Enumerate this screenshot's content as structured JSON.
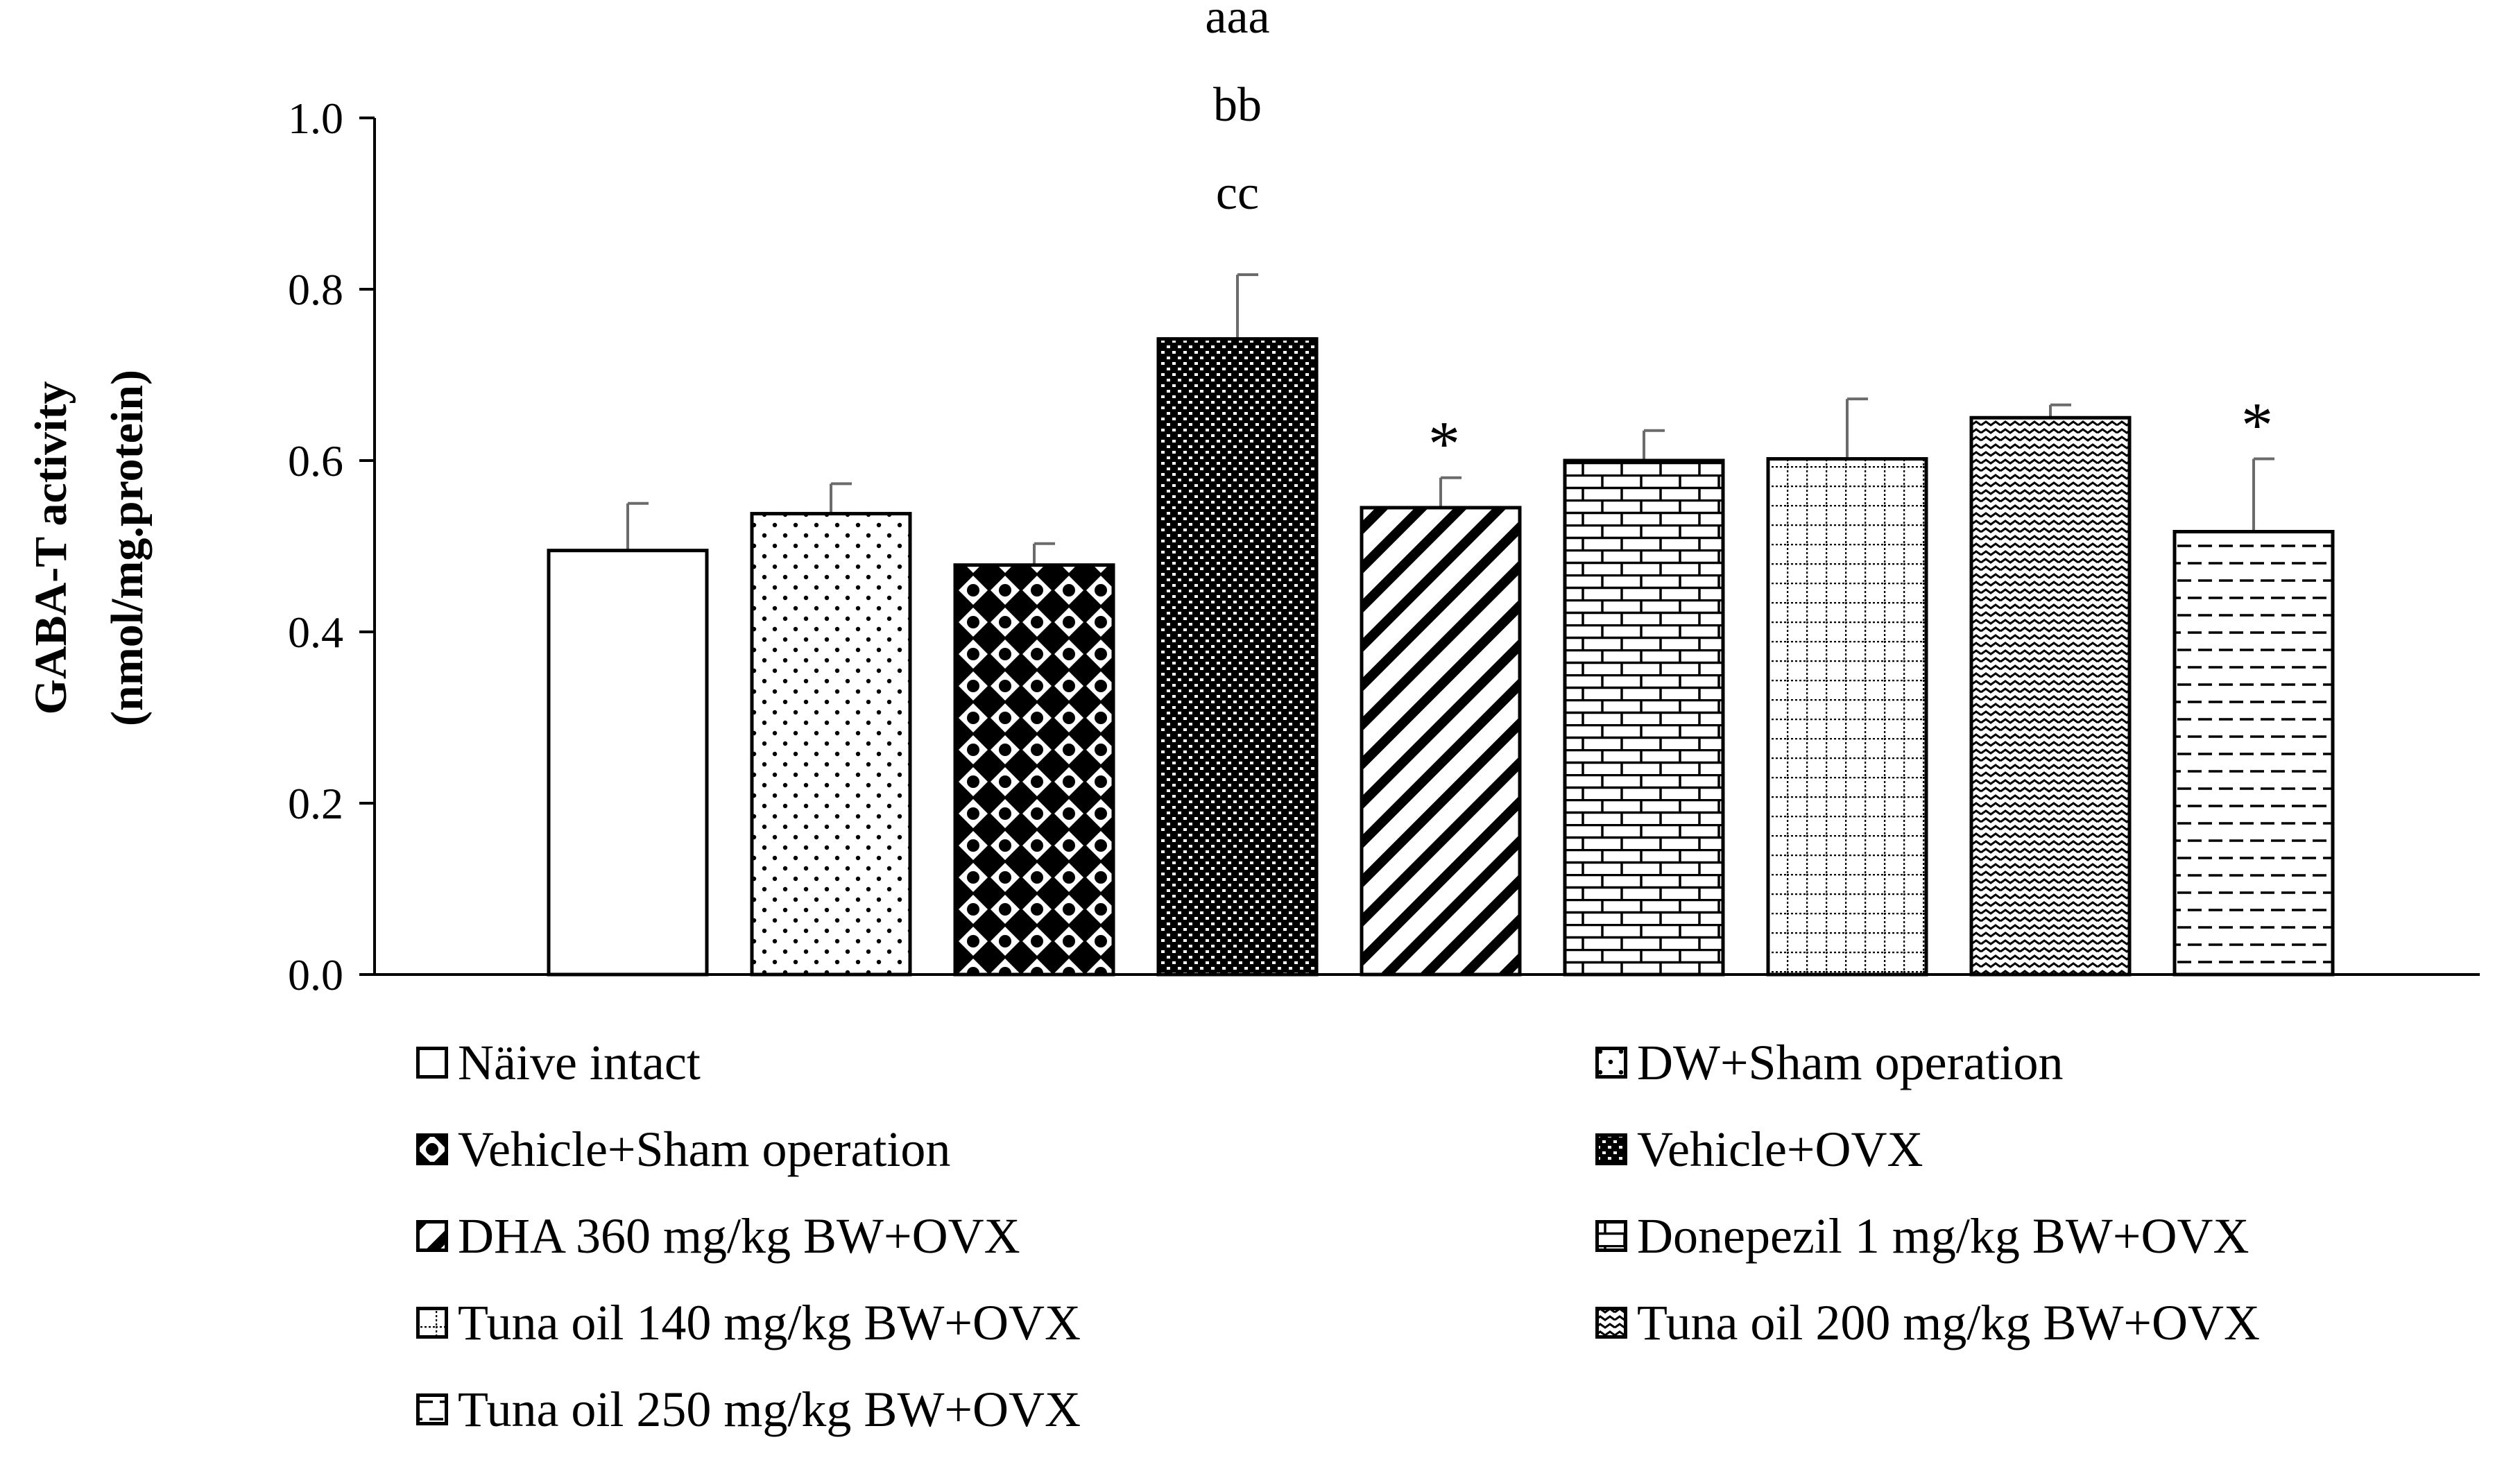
{
  "chart_data": {
    "type": "bar",
    "title": "",
    "xlabel": "",
    "ylabel": [
      "GABA-T activity",
      "(nmol/mg.protein)"
    ],
    "ylim": [
      0.0,
      1.0
    ],
    "yticks": [
      "0.0",
      "0.2",
      "0.4",
      "0.6",
      "0.8",
      "1.0"
    ],
    "categories": [
      "Näive intact",
      "DW+Sham operation",
      "Vehicle+Sham operation",
      "Vehicle+OVX",
      "DHA 360 mg/kg BW+OVX",
      "Donepezil 1 mg/kg BW+OVX",
      "Tuna oil 140 mg/kg BW+OVX",
      "Tuna oil 200 mg/kg BW+OVX",
      "Tuna oil 250 mg/kg BW+OVX"
    ],
    "values": [
      0.495,
      0.538,
      0.478,
      0.742,
      0.545,
      0.6,
      0.602,
      0.65,
      0.517
    ],
    "errors": [
      0.055,
      0.035,
      0.025,
      0.075,
      0.035,
      0.035,
      0.07,
      0.015,
      0.085
    ],
    "patterns": [
      "none",
      "dots",
      "diamonds",
      "dense",
      "diag",
      "brick",
      "grid",
      "wave",
      "dash"
    ],
    "annotations": [
      {
        "bar_index": 3,
        "lines": [
          "aaa",
          "bb",
          "cc"
        ]
      },
      {
        "bar_index": 4,
        "lines": [
          "*"
        ]
      },
      {
        "bar_index": 8,
        "lines": [
          "*"
        ]
      }
    ],
    "legend": [
      {
        "label": "Näive intact",
        "pattern": "none"
      },
      {
        "label": "DW+Sham operation",
        "pattern": "dots"
      },
      {
        "label": "Vehicle+Sham operation",
        "pattern": "diamonds"
      },
      {
        "label": "Vehicle+OVX",
        "pattern": "dense"
      },
      {
        "label": "DHA 360 mg/kg BW+OVX",
        "pattern": "diag"
      },
      {
        "label": "Donepezil 1 mg/kg BW+OVX",
        "pattern": "brick"
      },
      {
        "label": "Tuna oil 140 mg/kg BW+OVX",
        "pattern": "grid"
      },
      {
        "label": "Tuna oil 200 mg/kg BW+OVX",
        "pattern": "wave"
      },
      {
        "label": " Tuna oil 250 mg/kg BW+OVX",
        "pattern": "dash"
      }
    ],
    "legend_position": "bottom",
    "bar_color": "#000000",
    "background": "#ffffff",
    "grid": false
  }
}
